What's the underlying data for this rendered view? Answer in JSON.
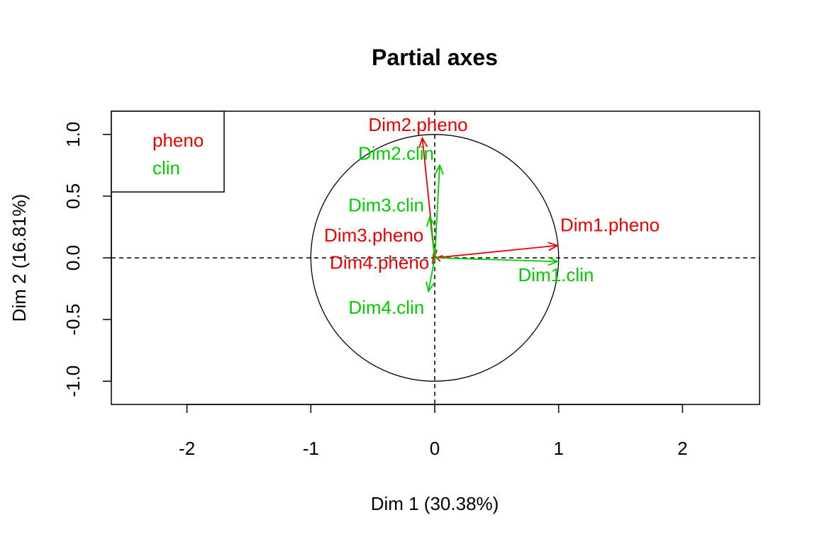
{
  "chart_data": {
    "type": "scatter",
    "title": "Partial axes",
    "xlabel": "Dim 1 (30.38%)",
    "ylabel": "Dim 2 (16.81%)",
    "xlim": [
      -2.6,
      2.6
    ],
    "ylim": [
      -1.2,
      1.2
    ],
    "x_ticks": [
      "-2",
      "-1",
      "0",
      "1",
      "2"
    ],
    "y_ticks": [
      "-1.0",
      "-0.5",
      "0.0",
      "0.5",
      "1.0"
    ],
    "reference_lines": {
      "x": 0,
      "y": 0,
      "style": "dashed"
    },
    "unit_circle": true,
    "legend": {
      "position": "top-left",
      "entries": [
        {
          "label": "pheno",
          "color": "#ee0000"
        },
        {
          "label": "clin",
          "color": "#00cc00"
        }
      ]
    },
    "series": [
      {
        "name": "pheno",
        "color": "#ee0000",
        "vectors": [
          {
            "label": "Dim1.pheno",
            "x": 0.99,
            "y": 0.1
          },
          {
            "label": "Dim2.pheno",
            "x": -0.1,
            "y": 0.97
          },
          {
            "label": "Dim3.pheno",
            "x": -0.01,
            "y": 0.03
          },
          {
            "label": "Dim4.pheno",
            "x": -0.01,
            "y": -0.01
          }
        ]
      },
      {
        "name": "clin",
        "color": "#00cc00",
        "vectors": [
          {
            "label": "Dim1.clin",
            "x": 0.99,
            "y": -0.03
          },
          {
            "label": "Dim2.clin",
            "x": 0.04,
            "y": 0.75
          },
          {
            "label": "Dim3.clin",
            "x": -0.04,
            "y": 0.33
          },
          {
            "label": "Dim4.clin",
            "x": -0.05,
            "y": -0.27
          }
        ]
      }
    ]
  }
}
